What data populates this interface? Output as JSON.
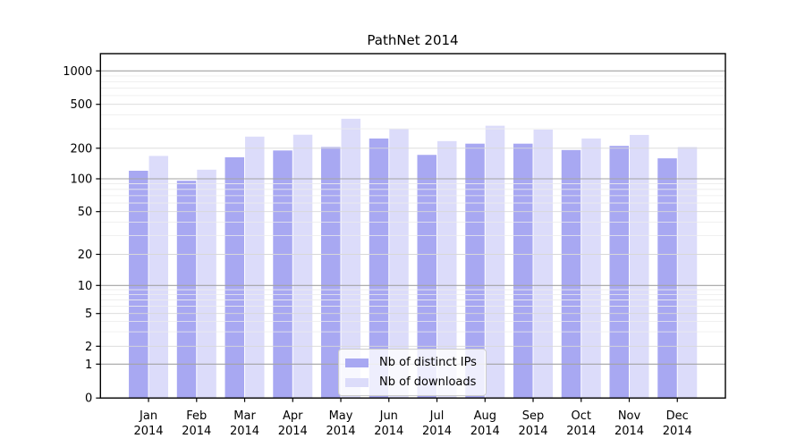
{
  "chart_data": {
    "type": "bar",
    "title": "PathNet 2014",
    "categories": [
      "Jan 2014",
      "Feb 2014",
      "Mar 2014",
      "Apr 2014",
      "May 2014",
      "Jun 2014",
      "Jul 2014",
      "Aug 2014",
      "Sep 2014",
      "Oct 2014",
      "Nov 2014",
      "Dec 2014"
    ],
    "x_tick_months": [
      "Jan",
      "Feb",
      "Mar",
      "Apr",
      "May",
      "Jun",
      "Jul",
      "Aug",
      "Sep",
      "Oct",
      "Nov",
      "Dec"
    ],
    "x_tick_year": "2014",
    "yscale": "symlog",
    "ylim": [
      0,
      1160
    ],
    "grid": true,
    "y_ticks": [
      0,
      1,
      2,
      5,
      10,
      20,
      50,
      100,
      200,
      500,
      1000
    ],
    "y_minor_gridlines": [
      3,
      4,
      6,
      7,
      8,
      9,
      30,
      40,
      60,
      70,
      80,
      90,
      300,
      400,
      600,
      700,
      800,
      900
    ],
    "series": [
      {
        "name": "Nb of distinct IPs",
        "color": "#a8a8f2",
        "values": [
          120,
          96,
          163,
          190,
          205,
          245,
          172,
          220,
          220,
          192,
          210,
          159
        ]
      },
      {
        "name": "Nb of downloads",
        "color": "#dcdcfa",
        "values": [
          168,
          123,
          255,
          265,
          370,
          300,
          232,
          320,
          295,
          245,
          264,
          205
        ]
      }
    ],
    "legend_position": "lower center (inside axes)"
  }
}
